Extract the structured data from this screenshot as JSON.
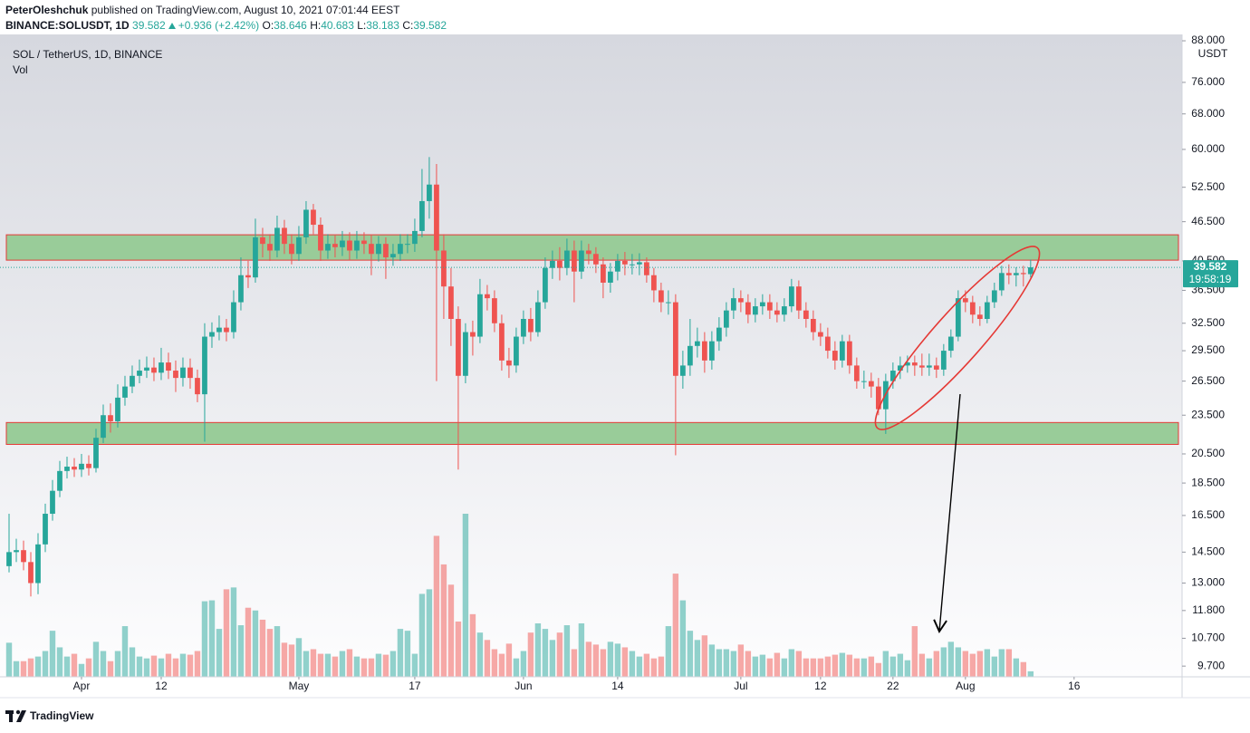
{
  "header": {
    "author": "PeterOleshchuk",
    "published": "published on TradingView.com, August 10, 2021 07:01:44 EEST",
    "symbol": "BINANCE:SOLUSDT, 1D",
    "last": "39.582",
    "change": "+0.936 (+2.42%)",
    "ohlc": [
      {
        "label": "O:",
        "value": "38.646"
      },
      {
        "label": "H:",
        "value": "40.683"
      },
      {
        "label": "L:",
        "value": "38.183"
      },
      {
        "label": "C:",
        "value": "39.582"
      }
    ]
  },
  "chart_data": {
    "type": "candlestick",
    "legend_title": "SOL / TetherUS, 1D, BINANCE",
    "volume_label": "Vol",
    "axis_unit": "USDT",
    "price_tag": "39.582",
    "countdown": "19:58:19",
    "footer": "TradingView",
    "log_scale": true,
    "grid": false,
    "up_color": "#26a69a",
    "down_color": "#ef5350",
    "zone_color": "#99cc99",
    "zone_border": "#e53935",
    "zones": [
      {
        "low": 40.6,
        "high": 44.4
      },
      {
        "low": 21.2,
        "high": 22.9
      }
    ],
    "xlim": [
      -1.25,
      161.9
    ],
    "xticks": [
      {
        "value": 10,
        "label": "Apr"
      },
      {
        "value": 21,
        "label": "12"
      },
      {
        "value": 40,
        "label": "May"
      },
      {
        "value": 56,
        "label": "17"
      },
      {
        "value": 71,
        "label": "Jun"
      },
      {
        "value": 84,
        "label": "14"
      },
      {
        "value": 101,
        "label": "Jul"
      },
      {
        "value": 112,
        "label": "12"
      },
      {
        "value": 122,
        "label": "22"
      },
      {
        "value": 132,
        "label": "Aug"
      },
      {
        "value": 147,
        "label": "16"
      }
    ],
    "ylim": [
      9.34,
      90.0
    ],
    "yticks": [
      {
        "value": 88,
        "label": "88.000"
      },
      {
        "value": 76,
        "label": "76.000"
      },
      {
        "value": 68,
        "label": "68.000"
      },
      {
        "value": 60,
        "label": "60.000"
      },
      {
        "value": 52.5,
        "label": "52.500"
      },
      {
        "value": 46.5,
        "label": "46.500"
      },
      {
        "value": 40.5,
        "label": "40.500"
      },
      {
        "value": 36.5,
        "label": "36.500"
      },
      {
        "value": 32.5,
        "label": "32.500"
      },
      {
        "value": 29.5,
        "label": "29.500"
      },
      {
        "value": 26.5,
        "label": "26.500"
      },
      {
        "value": 23.5,
        "label": "23.500"
      },
      {
        "value": 20.5,
        "label": "20.500"
      },
      {
        "value": 18.5,
        "label": "18.500"
      },
      {
        "value": 16.5,
        "label": "16.500"
      },
      {
        "value": 14.5,
        "label": "14.500"
      },
      {
        "value": 13,
        "label": "13.000"
      },
      {
        "value": 11.8,
        "label": "11.800"
      },
      {
        "value": 10.7,
        "label": "10.700"
      },
      {
        "value": 9.7,
        "label": "9.700"
      }
    ],
    "open": [
      13.8,
      14.5,
      14.6,
      14.0,
      13.0,
      14.9,
      16.6,
      18.0,
      19.3,
      19.6,
      19.4,
      19.8,
      19.5,
      21.7,
      23.5,
      23.0,
      25.0,
      26.0,
      27.0,
      27.5,
      27.8,
      27.3,
      28.3,
      27.5,
      26.8,
      27.8,
      26.8,
      25.3,
      31.0,
      31.5,
      32.0,
      31.5,
      35.0,
      38.5,
      38.2,
      44.0,
      43.0,
      42.0,
      45.5,
      43.0,
      41.5,
      44.0,
      48.5,
      46.0,
      42.0,
      43.0,
      42.5,
      43.5,
      42.0,
      43.5,
      43.0,
      41.5,
      43.0,
      41.0,
      41.5,
      43.0,
      43.0,
      45.0,
      50.0,
      53.0,
      42.0,
      37.0,
      33.0,
      27.0,
      31.5,
      31.0,
      36.0,
      35.5,
      32.5,
      28.5,
      28.0,
      31.0,
      33.0,
      31.5,
      35.0,
      39.5,
      40.5,
      39.5,
      42.0,
      39.0,
      42.0,
      41.5,
      40.0,
      37.5,
      39.0,
      40.5,
      40.0,
      40.0,
      40.3,
      38.5,
      36.5,
      35.0,
      35.0,
      27.0,
      28.0,
      30.0,
      30.5,
      28.5,
      30.5,
      32.0,
      34.0,
      35.5,
      35.0,
      33.5,
      34.5,
      35.0,
      34.0,
      33.5,
      34.5,
      37.0,
      34.0,
      33.0,
      31.5,
      31.0,
      29.5,
      28.5,
      30.5,
      28.0,
      26.5,
      26.5,
      26.0,
      24.0,
      26.5,
      27.5,
      28.0,
      28.3,
      28.0,
      27.8,
      28.0,
      27.6,
      29.5,
      31.0,
      35.5,
      35.0,
      33.5,
      33.0,
      35.0,
      36.5,
      38.8,
      38.5,
      38.8,
      38.646
    ],
    "high": [
      16.6,
      15.2,
      15.1,
      14.5,
      15.5,
      17.2,
      18.7,
      20.0,
      20.3,
      20.2,
      20.5,
      20.4,
      22.4,
      24.4,
      24.5,
      26.2,
      27.0,
      28.0,
      28.6,
      28.9,
      28.8,
      29.8,
      29.3,
      28.5,
      28.8,
      28.7,
      27.6,
      32.5,
      32.6,
      33.4,
      33.0,
      36.5,
      41.0,
      40.5,
      47.0,
      45.5,
      44.5,
      47.5,
      46.8,
      44.5,
      45.8,
      50.0,
      49.5,
      47.2,
      44.5,
      44.3,
      45.0,
      44.8,
      45.0,
      44.8,
      44.4,
      44.2,
      44.0,
      43.0,
      44.5,
      44.5,
      47.0,
      56.0,
      58.4,
      57.0,
      44.5,
      39.5,
      34.5,
      32.5,
      32.8,
      38.0,
      37.2,
      36.5,
      33.5,
      29.8,
      32.0,
      34.0,
      34.3,
      36.5,
      41.0,
      42.0,
      42.5,
      43.8,
      43.5,
      43.5,
      43.0,
      42.5,
      41.0,
      40.2,
      41.5,
      41.8,
      41.5,
      41.6,
      41.0,
      39.5,
      37.5,
      36.5,
      36.0,
      29.5,
      33.0,
      32.0,
      31.5,
      31.6,
      33.2,
      35.0,
      36.8,
      36.5,
      36.0,
      35.5,
      36.0,
      36.0,
      35.0,
      35.5,
      38.0,
      37.8,
      35.0,
      34.0,
      32.5,
      32.0,
      30.5,
      31.2,
      31.2,
      28.8,
      27.5,
      27.3,
      26.8,
      27.2,
      28.3,
      28.9,
      29.0,
      29.0,
      29.2,
      29.2,
      28.8,
      30.2,
      31.8,
      36.5,
      36.5,
      35.8,
      34.5,
      35.8,
      37.5,
      39.8,
      40.0,
      39.6,
      39.8,
      40.683
    ],
    "low": [
      13.5,
      14.0,
      13.6,
      12.4,
      12.5,
      14.5,
      16.2,
      17.6,
      18.8,
      18.9,
      18.9,
      19.0,
      19.2,
      21.3,
      22.1,
      22.5,
      24.3,
      25.4,
      26.3,
      26.8,
      26.5,
      26.6,
      26.7,
      25.5,
      26.0,
      25.8,
      24.6,
      21.4,
      29.8,
      30.6,
      30.5,
      30.8,
      34.0,
      36.8,
      37.5,
      41.0,
      40.5,
      41.0,
      41.5,
      40.0,
      40.5,
      43.0,
      44.5,
      40.5,
      40.8,
      41.0,
      41.2,
      40.6,
      40.8,
      41.5,
      38.5,
      40.4,
      38.0,
      39.8,
      40.5,
      41.6,
      41.8,
      44.0,
      47.0,
      26.5,
      33.0,
      30.0,
      19.4,
      26.3,
      29.0,
      30.3,
      34.0,
      31.5,
      27.5,
      26.8,
      27.3,
      30.2,
      30.5,
      31.0,
      34.2,
      38.0,
      37.8,
      38.5,
      35.0,
      38.0,
      40.0,
      38.8,
      35.5,
      36.2,
      37.8,
      38.5,
      38.6,
      38.5,
      37.5,
      35.0,
      33.8,
      33.5,
      20.4,
      25.8,
      27.0,
      28.8,
      27.3,
      27.6,
      29.5,
      31.0,
      33.0,
      33.8,
      32.5,
      32.6,
      33.5,
      33.0,
      32.6,
      32.7,
      33.8,
      33.0,
      32.0,
      30.6,
      30.0,
      28.7,
      27.6,
      27.8,
      27.2,
      25.8,
      25.8,
      25.0,
      23.5,
      22.0,
      25.8,
      26.7,
      27.3,
      27.0,
      27.0,
      27.0,
      26.8,
      27.0,
      28.8,
      30.5,
      33.8,
      32.5,
      32.2,
      32.5,
      34.3,
      35.8,
      37.3,
      37.0,
      37.0,
      38.183
    ],
    "close": [
      14.5,
      14.6,
      14.0,
      13.0,
      14.9,
      16.6,
      18.0,
      19.3,
      19.6,
      19.4,
      19.8,
      19.5,
      21.7,
      23.5,
      23.0,
      25.0,
      26.0,
      27.0,
      27.5,
      27.8,
      27.3,
      28.3,
      27.5,
      26.8,
      27.8,
      26.8,
      25.3,
      31.0,
      31.5,
      32.0,
      31.5,
      35.0,
      38.5,
      38.2,
      44.0,
      43.0,
      42.0,
      45.5,
      43.0,
      41.5,
      44.0,
      48.5,
      46.0,
      42.0,
      43.0,
      42.5,
      43.5,
      42.0,
      43.5,
      43.0,
      41.5,
      43.0,
      41.0,
      41.5,
      43.0,
      43.0,
      45.0,
      50.0,
      53.0,
      42.0,
      37.0,
      33.0,
      27.0,
      31.5,
      31.0,
      36.0,
      35.5,
      32.5,
      28.5,
      28.0,
      31.0,
      33.0,
      31.5,
      35.0,
      39.5,
      40.5,
      39.5,
      42.0,
      39.0,
      42.0,
      41.5,
      40.0,
      37.5,
      39.0,
      40.5,
      40.0,
      40.0,
      40.3,
      38.5,
      36.5,
      35.0,
      35.0,
      27.0,
      28.0,
      30.0,
      30.5,
      28.5,
      30.5,
      32.0,
      34.0,
      35.5,
      35.0,
      33.5,
      34.5,
      35.0,
      34.0,
      33.5,
      34.5,
      37.0,
      34.0,
      33.0,
      31.5,
      31.0,
      29.5,
      28.5,
      30.5,
      28.0,
      26.5,
      26.5,
      26.0,
      24.0,
      26.5,
      27.5,
      28.0,
      28.3,
      28.0,
      27.8,
      28.0,
      27.6,
      29.5,
      31.0,
      35.5,
      35.0,
      33.5,
      33.0,
      35.0,
      36.5,
      38.8,
      38.5,
      38.8,
      38.646,
      39.582
    ],
    "volume": [
      37,
      17,
      17,
      20,
      22,
      28,
      50,
      32,
      22,
      25,
      14,
      20,
      38,
      28,
      17,
      28,
      55,
      32,
      22,
      20,
      23,
      20,
      25,
      20,
      25,
      24,
      28,
      82,
      83,
      52,
      95,
      97,
      56,
      75,
      72,
      62,
      52,
      55,
      37,
      35,
      42,
      28,
      30,
      25,
      25,
      22,
      28,
      30,
      22,
      20,
      20,
      25,
      24,
      28,
      52,
      50,
      25,
      90,
      95,
      153,
      122,
      100,
      60,
      177,
      68,
      48,
      40,
      30,
      25,
      36,
      20,
      28,
      48,
      58,
      52,
      40,
      48,
      56,
      30,
      58,
      38,
      35,
      30,
      38,
      36,
      32,
      28,
      22,
      25,
      20,
      22,
      55,
      112,
      83,
      50,
      40,
      45,
      35,
      30,
      30,
      28,
      35,
      28,
      22,
      24,
      20,
      26,
      20,
      30,
      28,
      20,
      20,
      20,
      22,
      24,
      26,
      24,
      20,
      20,
      22,
      15,
      28,
      22,
      25,
      18,
      55,
      25,
      20,
      28,
      32,
      38,
      32,
      28,
      25,
      28,
      30,
      22,
      30,
      30,
      20,
      16,
      6
    ]
  }
}
